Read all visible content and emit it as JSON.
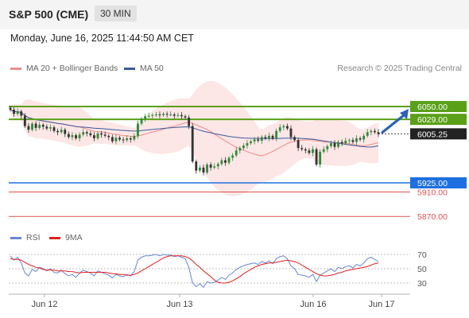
{
  "header": {
    "symbol": "S&P 500 (CME)",
    "timeframe": "30 MIN",
    "datetime": "Monday, June 16, 2025 11:44:50 AM CET",
    "copyright": "Research © 2025 Trading Central"
  },
  "colors": {
    "bollinger": "#f08a8a",
    "ma50": "#3a5a9a",
    "resistance": "#5aa018",
    "support": "#1e70e0",
    "support_secondary": "#e05050",
    "rsi": "#6a86d8",
    "rsi_ma": "#e02020",
    "candle_up": "#2e8b3a",
    "candle_down": "#333333"
  },
  "chart_data": [
    {
      "type": "candlestick",
      "legend": [
        "MA 20 + Bollinger Bands",
        "MA 50"
      ],
      "x_ticks": [
        "Jun 12",
        "Jun 13",
        "Jun 16",
        "Jun 17"
      ],
      "last_price": 6005.25,
      "levels": [
        {
          "value": 6050.0,
          "label": "6050.00",
          "kind": "resistance"
        },
        {
          "value": 6029.0,
          "label": "6029.00",
          "kind": "resistance"
        },
        {
          "value": 5925.0,
          "label": "5925.00",
          "kind": "support"
        },
        {
          "value": 5910.0,
          "label": "5910.00",
          "kind": "support_secondary"
        },
        {
          "value": 5870.0,
          "label": "5870.00",
          "kind": "support_secondary"
        }
      ],
      "forecast_arrow_target": 6050.0,
      "close_approx": [
        6045,
        6038,
        6042,
        6035,
        6018,
        6012,
        6022,
        6015,
        6020,
        6017,
        6014,
        6016,
        6010,
        6008,
        6012,
        6005,
        6000,
        6003,
        5998,
        6004,
        6008,
        6006,
        6003,
        5998,
        6006,
        6004,
        6002,
        6000,
        5993,
        5999,
        5996,
        5995,
        5998,
        5996,
        6002,
        6022,
        6030,
        6034,
        6035,
        6036,
        6037,
        6036,
        6038,
        6037,
        6037,
        6035,
        6036,
        6034,
        6032,
        6018,
        5960,
        5945,
        5950,
        5942,
        5955,
        5950,
        5952,
        5956,
        5962,
        5958,
        5966,
        5970,
        5978,
        5982,
        5986,
        5990,
        5993,
        5996,
        5994,
        6000,
        5998,
        6002,
        5998,
        6010,
        6016,
        6018,
        6014,
        6000,
        5995,
        5982,
        5980,
        5978,
        5974,
        5980,
        5955,
        5976,
        5980,
        5985,
        5990,
        5984,
        5992,
        5990,
        5994,
        5995,
        5992,
        5998,
        5996,
        6002,
        6008,
        6010,
        6008,
        6005
      ]
    },
    {
      "type": "line",
      "legend": [
        "RSI",
        "9MA"
      ],
      "y_ticks": [
        70,
        50,
        30
      ],
      "series": [
        {
          "name": "RSI",
          "values": [
            68,
            62,
            66,
            58,
            44,
            40,
            49,
            46,
            52,
            50,
            47,
            50,
            45,
            44,
            48,
            43,
            40,
            42,
            38,
            44,
            48,
            46,
            44,
            40,
            47,
            45,
            43,
            41,
            37,
            42,
            40,
            39,
            42,
            40,
            46,
            62,
            66,
            68,
            68,
            69,
            70,
            68,
            70,
            69,
            69,
            67,
            68,
            66,
            64,
            52,
            30,
            25,
            29,
            24,
            32,
            30,
            31,
            34,
            38,
            35,
            41,
            44,
            49,
            52,
            54,
            56,
            57,
            58,
            56,
            60,
            58,
            61,
            57,
            64,
            67,
            68,
            64,
            54,
            50,
            42,
            41,
            40,
            38,
            42,
            32,
            41,
            44,
            47,
            50,
            46,
            52,
            50,
            53,
            54,
            51,
            56,
            54,
            58,
            64,
            66,
            63,
            60
          ]
        },
        {
          "name": "9MA",
          "values": [
            64,
            63,
            63,
            62,
            59,
            56,
            54,
            52,
            51,
            49,
            48,
            48,
            48,
            47,
            47,
            47,
            46,
            46,
            45,
            44,
            45,
            45,
            45,
            45,
            45,
            45,
            45,
            44,
            43,
            43,
            42,
            42,
            41,
            41,
            42,
            44,
            47,
            50,
            53,
            56,
            59,
            62,
            65,
            67,
            68,
            68,
            68,
            68,
            67,
            65,
            61,
            56,
            52,
            47,
            43,
            39,
            34,
            31,
            30,
            30,
            31,
            33,
            36,
            39,
            43,
            46,
            49,
            52,
            54,
            56,
            57,
            58,
            58,
            59,
            60,
            61,
            62,
            61,
            60,
            58,
            55,
            52,
            49,
            46,
            43,
            41,
            40,
            40,
            41,
            42,
            44,
            45,
            47,
            48,
            49,
            50,
            51,
            52,
            53,
            55,
            57,
            58
          ]
        }
      ]
    }
  ]
}
